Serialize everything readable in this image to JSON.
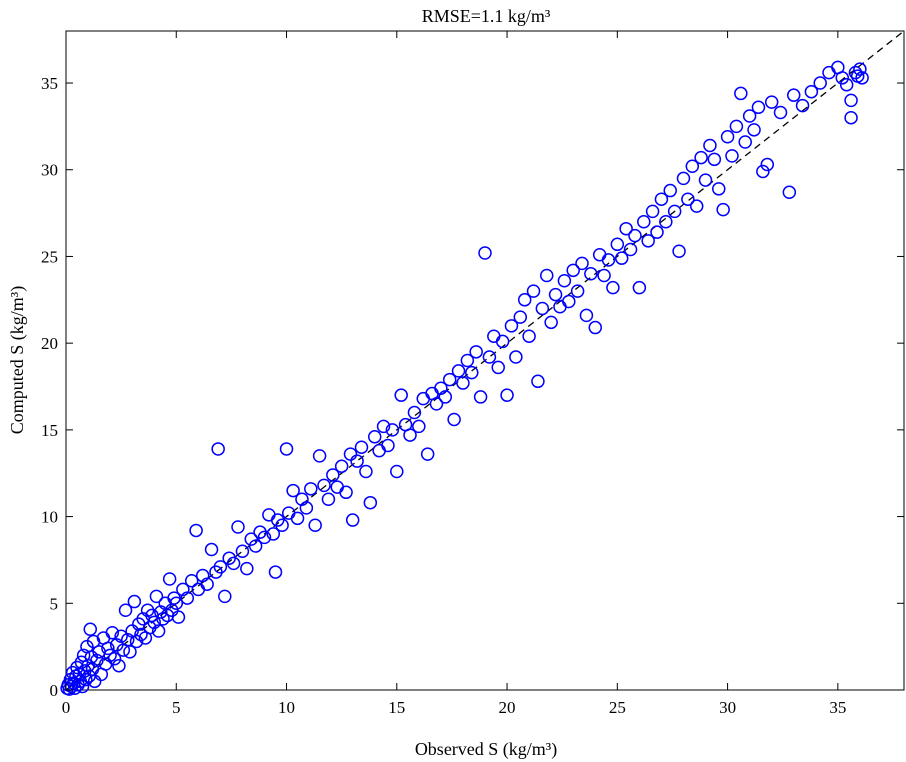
{
  "chart_data": {
    "type": "scatter",
    "title": "RMSE=1.1 kg/m³",
    "xlabel": "Observed S  (kg/m³)",
    "ylabel": "Computed S  (kg/m³)",
    "xlim": [
      0,
      38
    ],
    "ylim": [
      0,
      38
    ],
    "xticks": [
      0,
      5,
      10,
      15,
      20,
      25,
      30,
      35
    ],
    "yticks": [
      0,
      5,
      10,
      15,
      20,
      25,
      30,
      35
    ],
    "grid": false,
    "reference_line": {
      "style": "dashed",
      "color": "#000000",
      "from": [
        0,
        0
      ],
      "to": [
        38,
        38
      ]
    },
    "marker": {
      "shape": "open-circle",
      "color": "#0000ff"
    },
    "series": [
      {
        "points": [
          [
            0.05,
            0.1
          ],
          [
            0.1,
            0.3
          ],
          [
            0.15,
            0.05
          ],
          [
            0.2,
            0.6
          ],
          [
            0.25,
            0.2
          ],
          [
            0.3,
            1.0
          ],
          [
            0.35,
            0.4
          ],
          [
            0.4,
            0.1
          ],
          [
            0.45,
            0.8
          ],
          [
            0.5,
            1.3
          ],
          [
            0.55,
            0.3
          ],
          [
            0.6,
            0.9
          ],
          [
            0.65,
            0.5
          ],
          [
            0.7,
            1.6
          ],
          [
            0.75,
            0.2
          ],
          [
            0.8,
            2.0
          ],
          [
            0.85,
            1.1
          ],
          [
            0.9,
            0.6
          ],
          [
            0.95,
            2.5
          ],
          [
            1.0,
            1.4
          ],
          [
            1.05,
            0.8
          ],
          [
            1.1,
            3.5
          ],
          [
            1.15,
            1.9
          ],
          [
            1.2,
            1.2
          ],
          [
            1.25,
            2.8
          ],
          [
            1.3,
            0.5
          ],
          [
            1.4,
            1.7
          ],
          [
            1.5,
            2.2
          ],
          [
            1.6,
            0.9
          ],
          [
            1.7,
            3.0
          ],
          [
            1.8,
            1.5
          ],
          [
            1.9,
            2.4
          ],
          [
            2.0,
            2.0
          ],
          [
            2.1,
            3.3
          ],
          [
            2.2,
            1.8
          ],
          [
            2.3,
            2.6
          ],
          [
            2.4,
            1.4
          ],
          [
            2.5,
            3.1
          ],
          [
            2.6,
            2.3
          ],
          [
            2.7,
            4.6
          ],
          [
            2.8,
            2.9
          ],
          [
            2.9,
            2.2
          ],
          [
            3.0,
            3.4
          ],
          [
            3.1,
            5.1
          ],
          [
            3.2,
            2.8
          ],
          [
            3.3,
            3.8
          ],
          [
            3.4,
            3.2
          ],
          [
            3.5,
            4.1
          ],
          [
            3.6,
            3.0
          ],
          [
            3.7,
            4.6
          ],
          [
            3.8,
            3.6
          ],
          [
            3.9,
            4.3
          ],
          [
            4.0,
            3.9
          ],
          [
            4.1,
            5.4
          ],
          [
            4.2,
            3.4
          ],
          [
            4.3,
            4.5
          ],
          [
            4.4,
            4.1
          ],
          [
            4.5,
            5.0
          ],
          [
            4.6,
            4.3
          ],
          [
            4.7,
            6.4
          ],
          [
            4.8,
            4.6
          ],
          [
            4.9,
            5.3
          ],
          [
            5.0,
            5.0
          ],
          [
            5.1,
            4.2
          ],
          [
            5.3,
            5.8
          ],
          [
            5.5,
            5.3
          ],
          [
            5.7,
            6.3
          ],
          [
            5.9,
            9.2
          ],
          [
            6.0,
            5.8
          ],
          [
            6.2,
            6.6
          ],
          [
            6.4,
            6.1
          ],
          [
            6.6,
            8.1
          ],
          [
            6.8,
            6.8
          ],
          [
            6.9,
            13.9
          ],
          [
            7.0,
            7.1
          ],
          [
            7.2,
            5.4
          ],
          [
            7.4,
            7.6
          ],
          [
            7.6,
            7.3
          ],
          [
            7.8,
            9.4
          ],
          [
            8.0,
            8.0
          ],
          [
            8.2,
            7.0
          ],
          [
            8.4,
            8.7
          ],
          [
            8.6,
            8.3
          ],
          [
            8.8,
            9.1
          ],
          [
            9.0,
            8.8
          ],
          [
            9.2,
            10.1
          ],
          [
            9.4,
            9.0
          ],
          [
            9.5,
            6.8
          ],
          [
            9.6,
            9.8
          ],
          [
            9.8,
            9.5
          ],
          [
            10.0,
            13.9
          ],
          [
            10.1,
            10.2
          ],
          [
            10.3,
            11.5
          ],
          [
            10.5,
            9.9
          ],
          [
            10.7,
            11.0
          ],
          [
            10.9,
            10.5
          ],
          [
            11.1,
            11.6
          ],
          [
            11.3,
            9.5
          ],
          [
            11.5,
            13.5
          ],
          [
            11.7,
            11.8
          ],
          [
            11.9,
            11.0
          ],
          [
            12.1,
            12.4
          ],
          [
            12.3,
            11.7
          ],
          [
            12.5,
            12.9
          ],
          [
            12.7,
            11.4
          ],
          [
            12.9,
            13.6
          ],
          [
            13.0,
            9.8
          ],
          [
            13.2,
            13.2
          ],
          [
            13.4,
            14.0
          ],
          [
            13.6,
            12.6
          ],
          [
            13.8,
            10.8
          ],
          [
            14.0,
            14.6
          ],
          [
            14.2,
            13.8
          ],
          [
            14.4,
            15.2
          ],
          [
            14.6,
            14.1
          ],
          [
            14.8,
            15.0
          ],
          [
            15.0,
            12.6
          ],
          [
            15.2,
            17.0
          ],
          [
            15.4,
            15.3
          ],
          [
            15.6,
            14.7
          ],
          [
            15.8,
            16.0
          ],
          [
            16.0,
            15.2
          ],
          [
            16.2,
            16.8
          ],
          [
            16.4,
            13.6
          ],
          [
            16.6,
            17.1
          ],
          [
            16.8,
            16.5
          ],
          [
            17.0,
            17.4
          ],
          [
            17.2,
            16.9
          ],
          [
            17.4,
            17.9
          ],
          [
            17.6,
            15.6
          ],
          [
            17.8,
            18.4
          ],
          [
            18.0,
            17.7
          ],
          [
            18.2,
            19.0
          ],
          [
            18.4,
            18.3
          ],
          [
            18.6,
            19.5
          ],
          [
            18.8,
            16.9
          ],
          [
            19.0,
            25.2
          ],
          [
            19.2,
            19.2
          ],
          [
            19.4,
            20.4
          ],
          [
            19.6,
            18.6
          ],
          [
            19.8,
            20.1
          ],
          [
            20.0,
            17.0
          ],
          [
            20.2,
            21.0
          ],
          [
            20.4,
            19.2
          ],
          [
            20.6,
            21.5
          ],
          [
            20.8,
            22.5
          ],
          [
            21.0,
            20.4
          ],
          [
            21.2,
            23.0
          ],
          [
            21.4,
            17.8
          ],
          [
            21.6,
            22.0
          ],
          [
            21.8,
            23.9
          ],
          [
            22.0,
            21.2
          ],
          [
            22.2,
            22.8
          ],
          [
            22.4,
            22.1
          ],
          [
            22.6,
            23.6
          ],
          [
            22.8,
            22.4
          ],
          [
            23.0,
            24.2
          ],
          [
            23.2,
            23.0
          ],
          [
            23.4,
            24.6
          ],
          [
            23.6,
            21.6
          ],
          [
            23.8,
            24.0
          ],
          [
            24.0,
            20.9
          ],
          [
            24.2,
            25.1
          ],
          [
            24.4,
            23.9
          ],
          [
            24.6,
            24.8
          ],
          [
            24.8,
            23.2
          ],
          [
            25.0,
            25.7
          ],
          [
            25.2,
            24.9
          ],
          [
            25.4,
            26.6
          ],
          [
            25.6,
            25.4
          ],
          [
            25.8,
            26.2
          ],
          [
            26.0,
            23.2
          ],
          [
            26.2,
            27.0
          ],
          [
            26.4,
            25.9
          ],
          [
            26.6,
            27.6
          ],
          [
            26.8,
            26.4
          ],
          [
            27.0,
            28.3
          ],
          [
            27.2,
            27.0
          ],
          [
            27.4,
            28.8
          ],
          [
            27.6,
            27.6
          ],
          [
            27.8,
            25.3
          ],
          [
            28.0,
            29.5
          ],
          [
            28.2,
            28.3
          ],
          [
            28.4,
            30.2
          ],
          [
            28.6,
            27.9
          ],
          [
            28.8,
            30.7
          ],
          [
            29.0,
            29.4
          ],
          [
            29.2,
            31.4
          ],
          [
            29.4,
            30.6
          ],
          [
            29.6,
            28.9
          ],
          [
            29.8,
            27.7
          ],
          [
            30.0,
            31.9
          ],
          [
            30.2,
            30.8
          ],
          [
            30.4,
            32.5
          ],
          [
            30.6,
            34.4
          ],
          [
            30.8,
            31.6
          ],
          [
            31.0,
            33.1
          ],
          [
            31.2,
            32.3
          ],
          [
            31.4,
            33.6
          ],
          [
            31.6,
            29.9
          ],
          [
            31.8,
            30.3
          ],
          [
            32.0,
            33.9
          ],
          [
            32.4,
            33.3
          ],
          [
            32.8,
            28.7
          ],
          [
            33.0,
            34.3
          ],
          [
            33.4,
            33.7
          ],
          [
            33.8,
            34.5
          ],
          [
            34.2,
            35.0
          ],
          [
            34.6,
            35.6
          ],
          [
            35.0,
            35.9
          ],
          [
            35.2,
            35.3
          ],
          [
            35.4,
            34.9
          ],
          [
            35.6,
            34.0
          ],
          [
            35.6,
            33.0
          ],
          [
            35.8,
            35.6
          ],
          [
            35.9,
            35.4
          ],
          [
            36.0,
            35.8
          ],
          [
            36.1,
            35.3
          ]
        ]
      }
    ]
  }
}
